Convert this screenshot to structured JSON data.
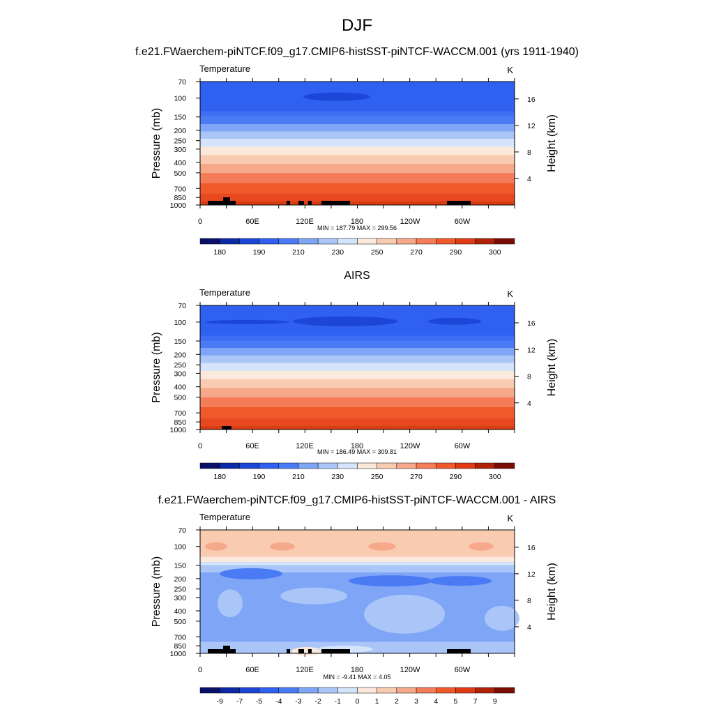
{
  "figure": {
    "title": "DJF",
    "units_label": "K",
    "field_label": "Temperature"
  },
  "axes": {
    "y_left_label": "Pressure (mb)",
    "y_right_label": "Height (km)",
    "pressure_ticks": [
      70,
      100,
      150,
      200,
      250,
      300,
      400,
      500,
      700,
      850,
      1000
    ],
    "height_ticks": [
      4,
      8,
      12,
      16
    ],
    "lon_tick_labels": [
      "0",
      "60E",
      "120E",
      "180",
      "120W",
      "60W"
    ]
  },
  "chart_data": [
    {
      "type": "heatmap",
      "id": "model",
      "title": "f.e21.FWaerchem-piNTCF.f09_g17.CMIP6-histSST-piNTCF-WACCM.001 (yrs 1911-1940)",
      "field": "Temperature",
      "units": "K",
      "xlabel": "",
      "ylabel": "Pressure (mb)",
      "y2label": "Height (km)",
      "xlim": [
        0,
        360
      ],
      "ylim": [
        1000,
        70
      ],
      "stats_text": "MIN = 187.79  MAX = 299.56",
      "min": 187.79,
      "max": 299.56,
      "colorbar_labels": [
        "180",
        "190",
        "210",
        "230",
        "250",
        "270",
        "290",
        "300"
      ],
      "colorbar_colors": [
        "#08106a",
        "#0c2aa6",
        "#1c46d6",
        "#2f60f0",
        "#4a7bf5",
        "#7ea5f6",
        "#aac6f8",
        "#d3e4fb",
        "#fbe9dc",
        "#f9ccb2",
        "#f6a98a",
        "#f47c58",
        "#f05a2a",
        "#e03a14",
        "#b02208",
        "#7a0c04"
      ]
    },
    {
      "type": "heatmap",
      "id": "obs",
      "title": "AIRS",
      "field": "Temperature",
      "units": "K",
      "xlabel": "",
      "ylabel": "Pressure (mb)",
      "y2label": "Height (km)",
      "xlim": [
        0,
        360
      ],
      "ylim": [
        1000,
        70
      ],
      "stats_text": "MIN = 186.49  MAX = 309.81",
      "min": 186.49,
      "max": 309.81,
      "colorbar_labels": [
        "180",
        "190",
        "210",
        "230",
        "250",
        "270",
        "290",
        "300"
      ],
      "colorbar_colors": [
        "#08106a",
        "#0c2aa6",
        "#1c46d6",
        "#2f60f0",
        "#4a7bf5",
        "#7ea5f6",
        "#aac6f8",
        "#d3e4fb",
        "#fbe9dc",
        "#f9ccb2",
        "#f6a98a",
        "#f47c58",
        "#f05a2a",
        "#e03a14",
        "#b02208",
        "#7a0c04"
      ]
    },
    {
      "type": "heatmap",
      "id": "diff",
      "title": "f.e21.FWaerchem-piNTCF.f09_g17.CMIP6-histSST-piNTCF-WACCM.001 - AIRS",
      "field": "Temperature",
      "units": "K",
      "xlabel": "",
      "ylabel": "Pressure (mb)",
      "y2label": "Height (km)",
      "xlim": [
        0,
        360
      ],
      "ylim": [
        1000,
        70
      ],
      "stats_text": "MIN =  -9.41  MAX =   4.05",
      "min": -9.41,
      "max": 4.05,
      "colorbar_labels": [
        "-9",
        "-7",
        "-5",
        "-4",
        "-3",
        "-2",
        "-1",
        "0",
        "1",
        "2",
        "3",
        "4",
        "5",
        "7",
        "9"
      ],
      "colorbar_colors": [
        "#08106a",
        "#0c2aa6",
        "#1c46d6",
        "#2f60f0",
        "#4a7bf5",
        "#7ea5f6",
        "#aac6f8",
        "#d3e4fb",
        "#fbe9dc",
        "#f9ccb2",
        "#f6a98a",
        "#f47c58",
        "#f05a2a",
        "#e03a14",
        "#b02208",
        "#7a0c04"
      ]
    }
  ]
}
